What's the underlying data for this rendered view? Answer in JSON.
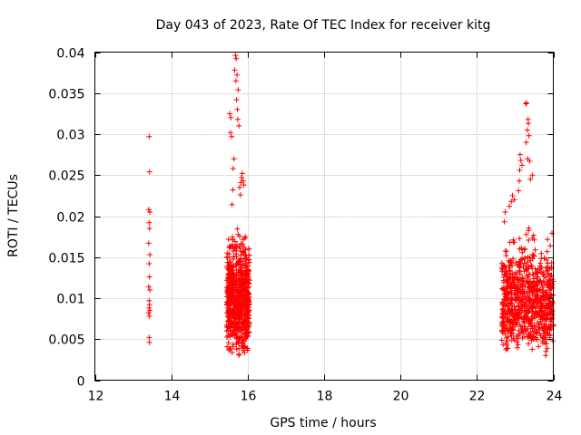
{
  "chart_data": {
    "type": "scatter",
    "title": "Day 043 of 2023, Rate Of TEC Index for receiver kitg",
    "xlabel": "GPS time / hours",
    "ylabel": "ROTI / TECUs",
    "xlim": [
      12,
      24
    ],
    "ylim": [
      0,
      0.04
    ],
    "x_ticks": [
      "12",
      "14",
      "16",
      "18",
      "20",
      "22",
      "24"
    ],
    "y_ticks": [
      "0",
      "0.005",
      "0.01",
      "0.015",
      "0.02",
      "0.025",
      "0.03",
      "0.035",
      "0.04"
    ],
    "grid": true,
    "marker": "+",
    "color": "#ff0000",
    "series": [
      {
        "x": [
          13.42,
          13.43,
          13.41,
          13.44,
          13.42,
          13.43,
          13.41,
          13.44,
          13.42,
          13.43,
          13.41,
          13.44,
          13.42,
          13.43,
          13.42,
          13.44,
          13.41,
          13.43,
          13.42,
          13.43
        ],
        "y": [
          0.0297,
          0.0254,
          0.0208,
          0.0205,
          0.0192,
          0.0185,
          0.0167,
          0.0153,
          0.0142,
          0.0126,
          0.0114,
          0.011,
          0.0097,
          0.0092,
          0.0088,
          0.0085,
          0.0082,
          0.0078,
          0.0052,
          0.0046
        ]
      },
      {
        "x": [
          15.68,
          15.7,
          15.66,
          15.72,
          15.69,
          15.75,
          15.71,
          15.73,
          15.53,
          15.56,
          15.55,
          15.58,
          15.74,
          15.77,
          15.64,
          15.86,
          15.84,
          15.88,
          15.82,
          15.9,
          15.79,
          15.81,
          15.62,
          15.61,
          15.59
        ],
        "y": [
          0.0396,
          0.0392,
          0.0378,
          0.0372,
          0.0365,
          0.0354,
          0.0342,
          0.033,
          0.0325,
          0.032,
          0.0302,
          0.0297,
          0.0318,
          0.031,
          0.027,
          0.0252,
          0.0247,
          0.0243,
          0.0241,
          0.0238,
          0.0235,
          0.0226,
          0.0258,
          0.0232,
          0.0214
        ]
      },
      {
        "x": [
          23.28,
          23.3,
          23.34,
          23.35,
          23.32,
          23.36,
          23.29,
          23.33,
          23.38,
          23.13,
          23.15,
          23.18,
          23.12,
          23.11,
          23.09,
          22.93,
          22.98,
          22.9,
          22.85,
          22.74,
          22.72,
          23.45,
          23.4
        ],
        "y": [
          0.0337,
          0.0338,
          0.0318,
          0.0313,
          0.0305,
          0.0298,
          0.029,
          0.027,
          0.0267,
          0.0275,
          0.0268,
          0.0262,
          0.0256,
          0.0243,
          0.0231,
          0.0225,
          0.022,
          0.0218,
          0.0212,
          0.0205,
          0.0193,
          0.025,
          0.0245
        ]
      }
    ],
    "dense_clusters": [
      {
        "x_min": 15.45,
        "x_max": 16.05,
        "y_min": 0.0025,
        "y_max": 0.02,
        "approx_points": 700
      },
      {
        "x_min": 22.65,
        "x_max": 24.0,
        "y_min": 0.0025,
        "y_max": 0.02,
        "approx_points": 800
      }
    ]
  }
}
